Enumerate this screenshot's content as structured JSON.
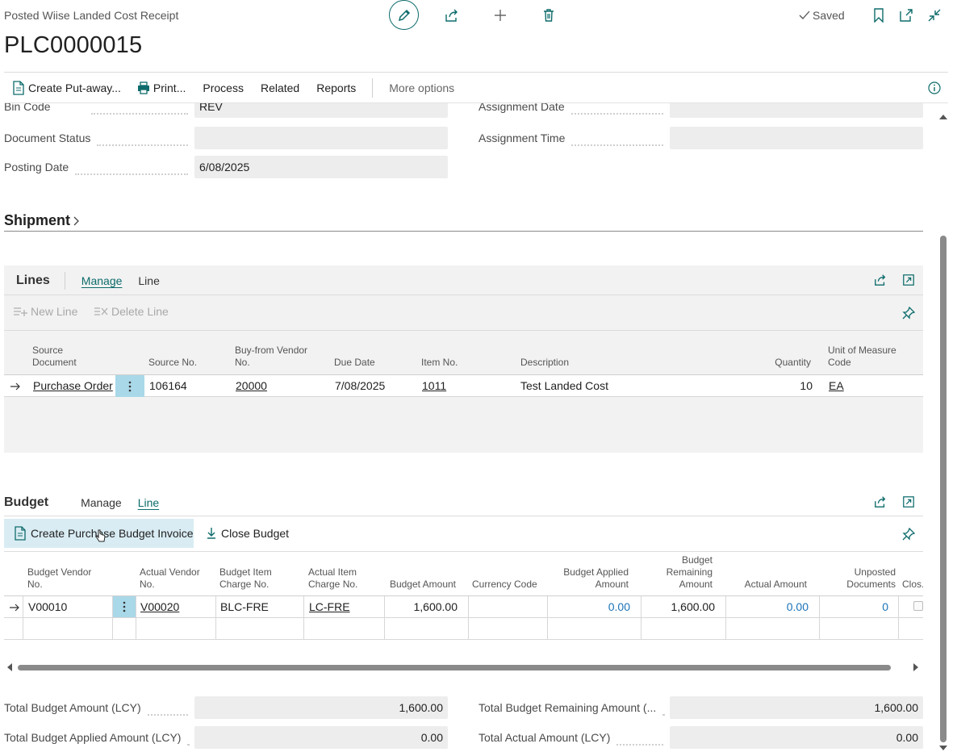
{
  "header": {
    "page_caption": "Posted Wiise Landed Cost Receipt",
    "record_no": "PLC0000015",
    "saved_label": "Saved"
  },
  "actions": {
    "create_putaway": "Create Put-away...",
    "print": "Print...",
    "process": "Process",
    "related": "Related",
    "reports": "Reports",
    "more_options": "More options"
  },
  "general": {
    "bin_code_label": "Bin Code",
    "bin_code_value": "REV",
    "document_status_label": "Document Status",
    "document_status_value": "",
    "posting_date_label": "Posting Date",
    "posting_date_value": "6/08/2025",
    "assignment_date_label": "Assignment Date",
    "assignment_date_value": "",
    "assignment_time_label": "Assignment Time",
    "assignment_time_value": ""
  },
  "shipment": {
    "title": "Shipment"
  },
  "lines": {
    "title": "Lines",
    "tab_manage": "Manage",
    "tab_line": "Line",
    "new_line": "New Line",
    "delete_line": "Delete Line",
    "columns": {
      "source_document": "Source Document",
      "source_no": "Source No.",
      "buy_from_vendor_no": "Buy-from Vendor No.",
      "due_date": "Due Date",
      "item_no": "Item No.",
      "description": "Description",
      "quantity": "Quantity",
      "uom_code": "Unit of Measure Code"
    },
    "rows": [
      {
        "source_document": "Purchase Order",
        "source_no": "106164",
        "buy_from_vendor_no": "20000",
        "due_date": "7/08/2025",
        "item_no": "1011",
        "description": "Test Landed Cost",
        "quantity": "10",
        "uom_code": "EA"
      }
    ]
  },
  "budget": {
    "title": "Budget",
    "tab_manage": "Manage",
    "tab_line": "Line",
    "create_invoice": "Create Purchase Budget Invoice",
    "close_budget": "Close Budget",
    "columns": {
      "budget_vendor_no": "Budget Vendor No.",
      "actual_vendor_no": "Actual Vendor No.",
      "budget_item_charge_no": "Budget Item Charge No.",
      "actual_item_charge_no": "Actual Item Charge No.",
      "budget_amount": "Budget Amount",
      "currency_code": "Currency Code",
      "budget_applied_amount": "Budget Applied Amount",
      "budget_remaining_amount": "Budget Remaining Amount",
      "actual_amount": "Actual Amount",
      "unposted_documents": "Unposted Documents",
      "closed": "Clos..."
    },
    "rows": [
      {
        "budget_vendor_no": "V00010",
        "actual_vendor_no": "V00020",
        "budget_item_charge_no": "BLC-FRE",
        "actual_item_charge_no": "LC-FRE",
        "budget_amount": "1,600.00",
        "currency_code": "",
        "budget_applied_amount": "0.00",
        "budget_remaining_amount": "1,600.00",
        "actual_amount": "0.00",
        "unposted_documents": "0"
      }
    ]
  },
  "totals": {
    "total_budget_amount_label": "Total Budget Amount (LCY)",
    "total_budget_amount_value": "1,600.00",
    "total_budget_applied_label": "Total Budget Applied Amount (LCY)",
    "total_budget_applied_value": "0.00",
    "total_budget_remaining_label": "Total Budget Remaining Amount (...",
    "total_budget_remaining_value": "1,600.00",
    "total_actual_label": "Total Actual Amount (LCY)",
    "total_actual_value": "0.00"
  },
  "colors": {
    "accent": "#0e6b6b",
    "link_blue": "#1a73b8",
    "field_bg": "#ededed",
    "panel_bg": "#f2f2f2",
    "selected_bg": "#a9d8e8"
  }
}
